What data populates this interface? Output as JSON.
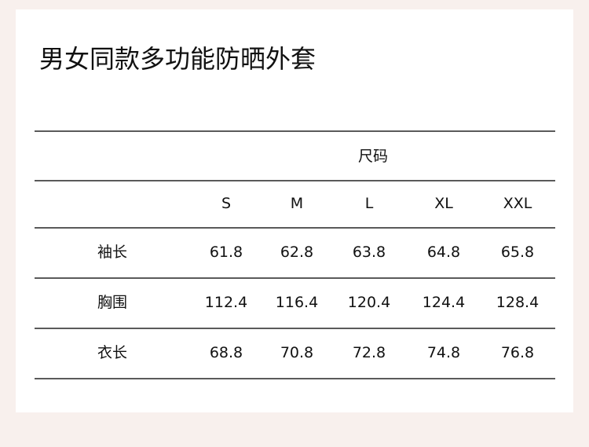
{
  "title": "男女同款多功能防晒外套",
  "table": {
    "group_header": "尺码",
    "sizes": [
      "S",
      "M",
      "L",
      "XL",
      "XXL"
    ],
    "rows": [
      {
        "label": "袖长",
        "values": [
          "61.8",
          "62.8",
          "63.8",
          "64.8",
          "65.8"
        ]
      },
      {
        "label": "胸围",
        "values": [
          "112.4",
          "116.4",
          "120.4",
          "124.4",
          "128.4"
        ]
      },
      {
        "label": "衣长",
        "values": [
          "68.8",
          "70.8",
          "72.8",
          "74.8",
          "76.8"
        ]
      }
    ]
  },
  "colors": {
    "background": "#f8f0ed",
    "card": "#ffffff",
    "rule": "#5a5a5a"
  }
}
